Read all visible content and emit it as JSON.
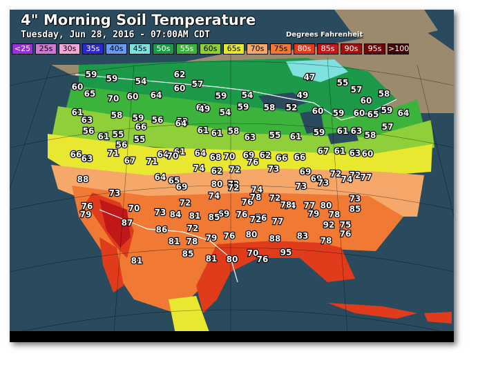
{
  "header": {
    "title": "4\" Morning Soil Temperature",
    "subtitle": "Tuesday, Jun 28, 2016 - 07:00AM CDT",
    "units": "Degrees Fahrenheit"
  },
  "legend": [
    {
      "label": "<25",
      "bg": "#9b30d8",
      "fg": "#ffffff"
    },
    {
      "label": "25s",
      "bg": "#cf7ad2",
      "fg": "#000000"
    },
    {
      "label": "30s",
      "bg": "#f2a8d8",
      "fg": "#000000"
    },
    {
      "label": "35s",
      "bg": "#2a2ac8",
      "fg": "#ffffff"
    },
    {
      "label": "40s",
      "bg": "#6b9bf0",
      "fg": "#000000"
    },
    {
      "label": "45s",
      "bg": "#7fe0e0",
      "fg": "#000000"
    },
    {
      "label": "50s",
      "bg": "#1c9a4a",
      "fg": "#ffffff"
    },
    {
      "label": "55s",
      "bg": "#3cb43c",
      "fg": "#ffffff"
    },
    {
      "label": "60s",
      "bg": "#8fcf3a",
      "fg": "#000000"
    },
    {
      "label": "65s",
      "bg": "#e8e830",
      "fg": "#000000"
    },
    {
      "label": "70s",
      "bg": "#f5a86a",
      "fg": "#000000"
    },
    {
      "label": "75s",
      "bg": "#f07a34",
      "fg": "#000000"
    },
    {
      "label": "80s",
      "bg": "#e03c1c",
      "fg": "#ffffff"
    },
    {
      "label": "85s",
      "bg": "#c01818",
      "fg": "#ffffff"
    },
    {
      "label": "90s",
      "bg": "#9c1212",
      "fg": "#ffffff"
    },
    {
      "label": "95s",
      "bg": "#6e0808",
      "fg": "#ffffff"
    },
    {
      "label": ">100",
      "bg": "#3e0404",
      "fg": "#ffffff"
    }
  ],
  "colors": {
    "ocean": "#2a4b5e",
    "canada_land": "#9c8a6e",
    "t45": "#7fe0e0",
    "t50": "#1c9a4a",
    "t55": "#3cb43c",
    "t60": "#8fcf3a",
    "t65": "#e8e830",
    "t70": "#f5a86a",
    "t75": "#f07a34",
    "t80": "#e03c1c",
    "t85": "#c01818"
  },
  "readings": [
    "59",
    "59",
    "54",
    "62",
    "57",
    "47",
    "55",
    "60",
    "65",
    "70",
    "60",
    "64",
    "60",
    "62",
    "59",
    "54",
    "49",
    "57",
    "60",
    "58",
    "61",
    "63",
    "58",
    "59",
    "56",
    "52",
    "49",
    "54",
    "59",
    "58",
    "52",
    "60",
    "59",
    "60",
    "65",
    "59",
    "64",
    "56",
    "61",
    "55",
    "66",
    "64",
    "61",
    "61",
    "58",
    "63",
    "55",
    "61",
    "59",
    "61",
    "63",
    "58",
    "57",
    "56",
    "55",
    "64",
    "61",
    "64",
    "68",
    "70",
    "69",
    "62",
    "66",
    "66",
    "67",
    "61",
    "63",
    "60",
    "66",
    "63",
    "71",
    "67",
    "71",
    "70",
    "74",
    "62",
    "72",
    "76",
    "73",
    "88",
    "64",
    "65",
    "69",
    "69",
    "69",
    "72",
    "72",
    "80",
    "72",
    "74",
    "74",
    "72",
    "76",
    "78",
    "72",
    "73",
    "73",
    "74",
    "77",
    "76",
    "73",
    "70",
    "73",
    "72",
    "81",
    "69",
    "76",
    "76",
    "74",
    "77",
    "80",
    "73",
    "85",
    "84",
    "72",
    "85",
    "72",
    "77",
    "78",
    "79",
    "78",
    "92",
    "75",
    "79",
    "87",
    "86",
    "81",
    "78",
    "79",
    "76",
    "80",
    "88",
    "83",
    "78",
    "76",
    "81",
    "85",
    "81",
    "80",
    "70",
    "76",
    "95"
  ]
}
